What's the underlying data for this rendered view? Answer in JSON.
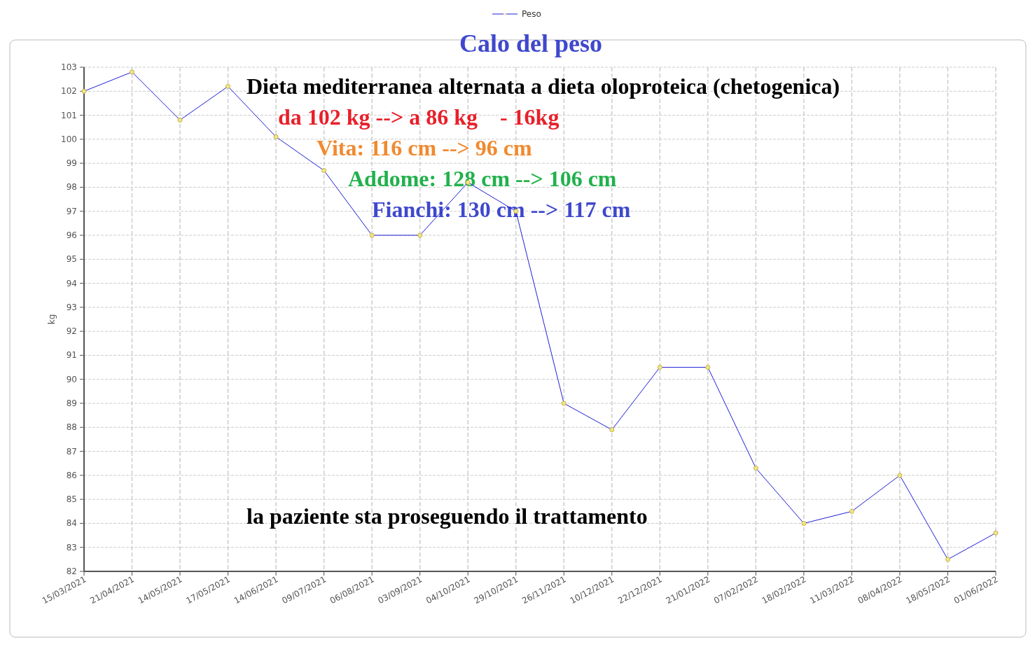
{
  "chart_data": {
    "type": "line",
    "title": "Calo del peso",
    "ylabel": "kg",
    "categories": [
      "15/03/2021",
      "21/04/2021",
      "14/05/2021",
      "17/05/2021",
      "14/06/2021",
      "09/07/2021",
      "06/08/2021",
      "03/09/2021",
      "04/10/2021",
      "29/10/2021",
      "26/11/2021",
      "10/12/2021",
      "22/12/2021",
      "21/01/2022",
      "07/02/2022",
      "18/02/2022",
      "11/03/2022",
      "08/04/2022",
      "18/05/2022",
      "01/06/2022"
    ],
    "series": [
      {
        "name": "Peso",
        "color": "#1f1fd6",
        "values": [
          102.0,
          102.8,
          100.8,
          102.2,
          100.1,
          98.7,
          96.0,
          96.0,
          98.2,
          97.0,
          89.0,
          87.9,
          90.5,
          90.5,
          86.3,
          84.0,
          84.5,
          86.0,
          82.5,
          83.6
        ]
      }
    ],
    "ylim": [
      82,
      103
    ],
    "yticks": [
      82,
      83,
      84,
      85,
      86,
      87,
      88,
      89,
      90,
      91,
      92,
      93,
      94,
      95,
      96,
      97,
      98,
      99,
      100,
      101,
      102,
      103
    ],
    "grid": true,
    "legend": "top",
    "marker": "circle",
    "line_style": "solid",
    "annotations": [
      "Dieta mediterranea alternata a dieta oloproteica (chetogenica)",
      "da 102 kg --> a 86 kg    - 16kg",
      "Vita: 116 cm --> 96 cm",
      "Addome: 128 cm --> 106 cm",
      "Fianchi: 130 cm --> 117 cm",
      "la paziente sta proseguendo il trattamento"
    ]
  }
}
